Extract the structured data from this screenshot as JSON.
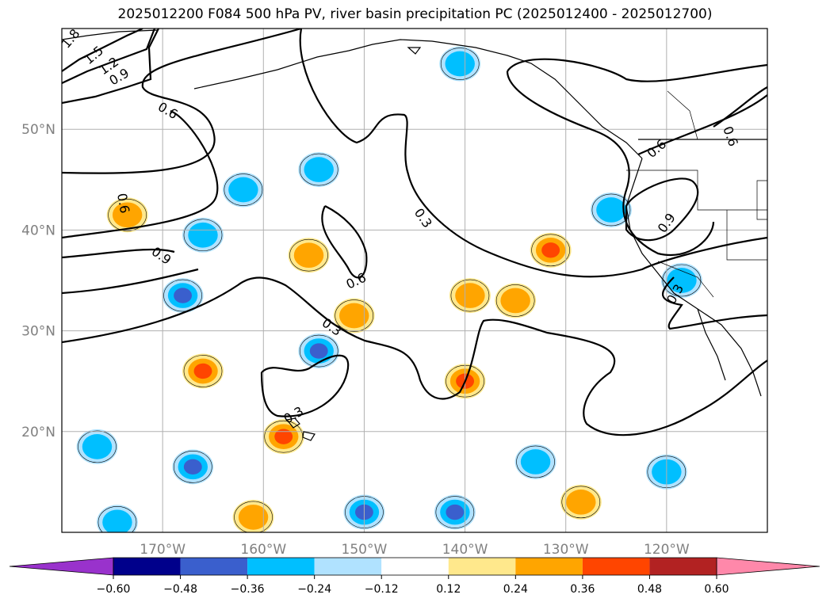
{
  "title": "2025012200 F084 500 hPa PV, river basin precipitation PC (2025012400 - 2025012700)",
  "chart_data": {
    "type": "contour-map",
    "title": "2025012200 F084 500 hPa PV, river basin precipitation PC (2025012400 - 2025012700)",
    "projection": "PlateCarree",
    "lon_range": [
      -180,
      -110
    ],
    "lat_range": [
      10,
      60
    ],
    "grid": true,
    "x_ticks": [
      "170°W",
      "160°W",
      "150°W",
      "140°W",
      "130°W",
      "120°W"
    ],
    "x_tick_values": [
      -170,
      -160,
      -150,
      -140,
      -130,
      -120
    ],
    "y_ticks": [
      "20°N",
      "30°N",
      "40°N",
      "50°N"
    ],
    "y_tick_values": [
      20,
      30,
      40,
      50
    ],
    "colorbar": {
      "orientation": "horizontal",
      "extend": "both",
      "levels": [
        -0.6,
        -0.48,
        -0.36,
        -0.24,
        -0.12,
        0.12,
        0.24,
        0.36,
        0.48,
        0.6
      ],
      "labels": [
        "−0.60",
        "−0.48",
        "−0.36",
        "−0.24",
        "−0.12",
        "0.12",
        "0.24",
        "0.36",
        "0.48",
        "0.60"
      ],
      "colors": [
        "#9932cc",
        "#00008b",
        "#3a5fcd",
        "#00bfff",
        "#b0e2ff",
        "#ffffff",
        "#ffe88c",
        "#ffa500",
        "#ff4500",
        "#b22222",
        "#ff88aa"
      ]
    },
    "pv_contour_labels": [
      "1.8",
      "1.5",
      "1.2",
      "0.9",
      "0.6",
      "0.3"
    ],
    "precip_blobs": [
      {
        "lon": -173.5,
        "lat": 41.5,
        "value": 0.3
      },
      {
        "lon": -162.0,
        "lat": 44.0,
        "value": -0.25
      },
      {
        "lon": -166.0,
        "lat": 39.5,
        "value": -0.3
      },
      {
        "lon": -168.0,
        "lat": 33.5,
        "value": -0.45
      },
      {
        "lon": -166.0,
        "lat": 26.0,
        "value": 0.4
      },
      {
        "lon": -154.5,
        "lat": 46.0,
        "value": -0.32
      },
      {
        "lon": -155.5,
        "lat": 37.5,
        "value": 0.3
      },
      {
        "lon": -151.0,
        "lat": 31.5,
        "value": 0.3
      },
      {
        "lon": -154.5,
        "lat": 28.0,
        "value": -0.4
      },
      {
        "lon": -158.0,
        "lat": 19.5,
        "value": 0.4
      },
      {
        "lon": -167.0,
        "lat": 16.5,
        "value": -0.45
      },
      {
        "lon": -176.5,
        "lat": 18.5,
        "value": -0.28
      },
      {
        "lon": -174.5,
        "lat": 11.0,
        "value": -0.25
      },
      {
        "lon": -161.0,
        "lat": 11.5,
        "value": 0.28
      },
      {
        "lon": -150.0,
        "lat": 12.0,
        "value": -0.45
      },
      {
        "lon": -141.0,
        "lat": 12.0,
        "value": -0.4
      },
      {
        "lon": -140.0,
        "lat": 25.0,
        "value": 0.42
      },
      {
        "lon": -131.5,
        "lat": 38.0,
        "value": 0.42
      },
      {
        "lon": -139.5,
        "lat": 33.5,
        "value": 0.3
      },
      {
        "lon": -135.0,
        "lat": 33.0,
        "value": 0.28
      },
      {
        "lon": -133.0,
        "lat": 17.0,
        "value": -0.3
      },
      {
        "lon": -120.0,
        "lat": 16.0,
        "value": -0.35
      },
      {
        "lon": -125.5,
        "lat": 42.0,
        "value": -0.35
      },
      {
        "lon": -118.5,
        "lat": 35.0,
        "value": -0.3
      },
      {
        "lon": -140.5,
        "lat": 56.5,
        "value": -0.25
      },
      {
        "lon": -128.5,
        "lat": 13.0,
        "value": 0.28
      }
    ]
  }
}
